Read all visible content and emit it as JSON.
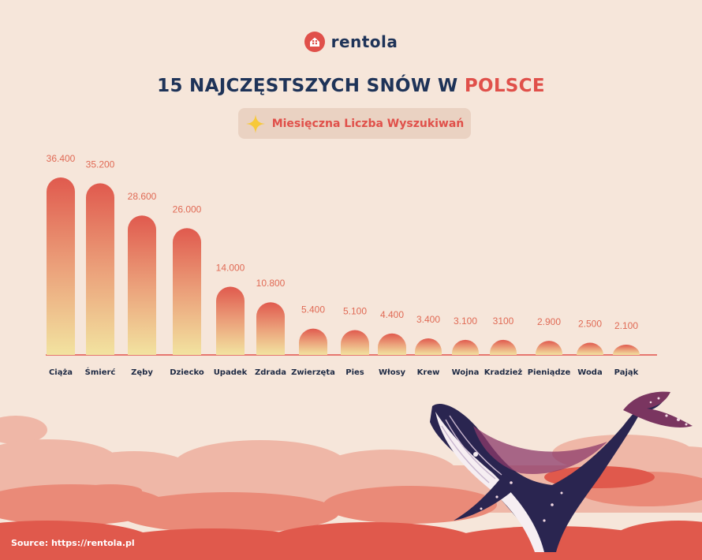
{
  "brand": {
    "name": "rentola"
  },
  "header": {
    "title_main": "15 NAJCZĘSTSZYCH SNÓW W",
    "title_accent": "POLSCE"
  },
  "legend": {
    "label": "Miesięczna Liczba Wyszukiwań"
  },
  "colors": {
    "bar_top": "#e05a4e",
    "bar_bottom": "#f2e3a0",
    "accent": "#e0504a",
    "navy": "#1e3358",
    "baseline": "#e0504a"
  },
  "chart_data": {
    "type": "bar",
    "categories": [
      "Ciąża",
      "Śmierć",
      "Zęby",
      "Dziecko",
      "Upadek",
      "Zdrada",
      "Zwierzęta",
      "Pies",
      "Włosy",
      "Krew",
      "Wojna",
      "Kradzież",
      "Pieniądze",
      "Woda",
      "Pająk"
    ],
    "values": [
      36400,
      35200,
      28600,
      26000,
      14000,
      10800,
      5400,
      5100,
      4400,
      3400,
      3100,
      3100,
      2900,
      2500,
      2100
    ],
    "value_labels": [
      "36.400",
      "35.200",
      "28.600",
      "26.000",
      "14.000",
      "10.800",
      "5.400",
      "5.100",
      "4.400",
      "3.400",
      "3.100",
      "3100",
      "2.900",
      "2.500",
      "2.100"
    ],
    "series": [
      {
        "name": "Miesięczna Liczba Wyszukiwań",
        "values": [
          36400,
          35200,
          28600,
          26000,
          14000,
          10800,
          5400,
          5100,
          4400,
          3400,
          3100,
          3100,
          2900,
          2500,
          2100
        ]
      }
    ],
    "title": "15 NAJCZĘSTSZYCH SNÓW W POLSCE",
    "xlabel": "",
    "ylabel": "",
    "ylim": [
      0,
      36400
    ],
    "grid": false,
    "legend": "top-center"
  },
  "footer": {
    "source": "Source: https://rentola.pl"
  }
}
